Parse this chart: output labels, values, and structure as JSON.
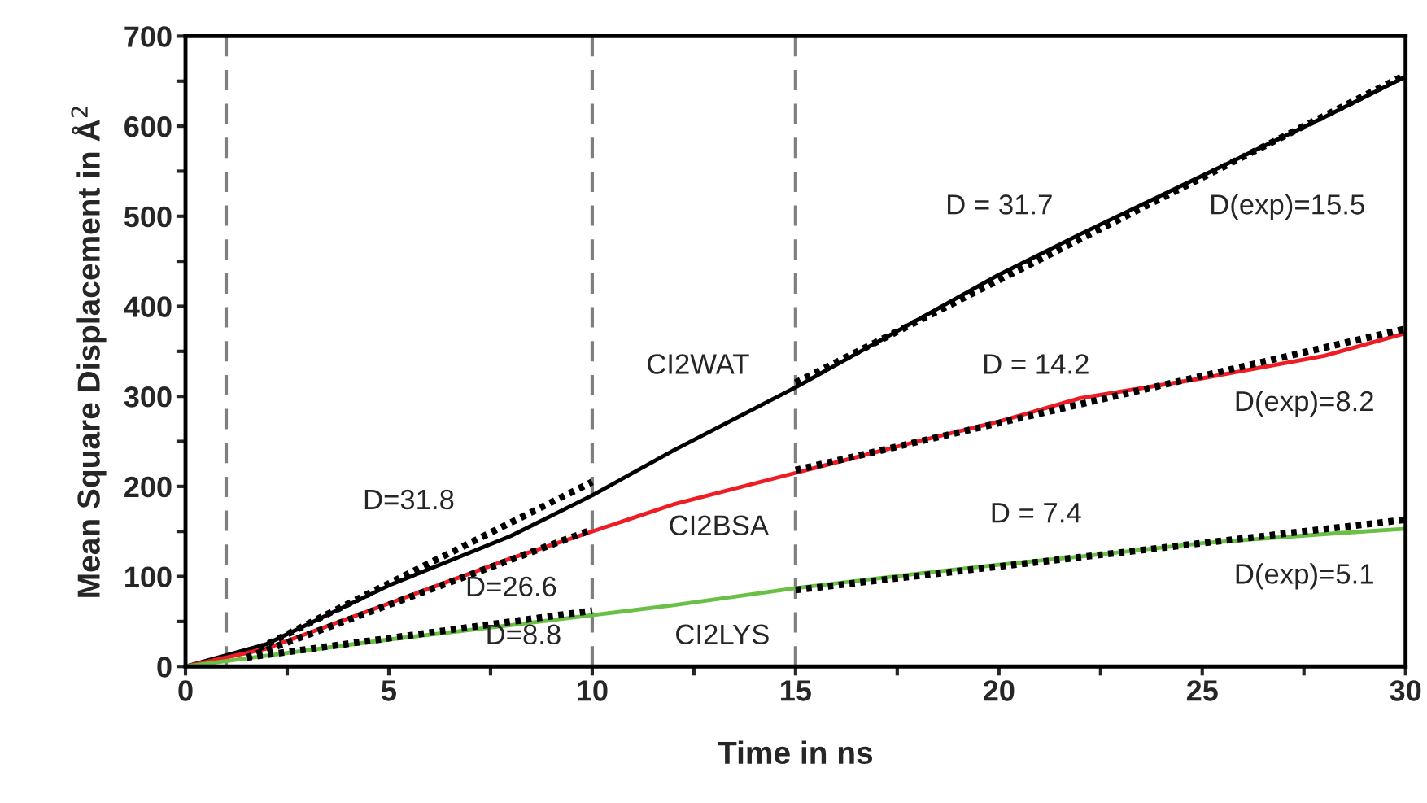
{
  "chart_data": {
    "type": "line",
    "xlabel": "Time in ns",
    "ylabel": "Mean Square Displacement in Å$^{2}$",
    "xlim": [
      0,
      30
    ],
    "ylim": [
      0,
      700
    ],
    "xticks": [
      0,
      {
        "value": 2.5,
        "label": null
      },
      5,
      {
        "value": 7.5,
        "label": null
      },
      10,
      {
        "value": 12.5,
        "label": null
      },
      15,
      {
        "value": 17.5,
        "label": null
      },
      20,
      {
        "value": 22.5,
        "label": null
      },
      25,
      {
        "value": 27.5,
        "label": null
      },
      30
    ],
    "yticks": [
      0,
      {
        "value": 50,
        "label": null
      },
      100,
      {
        "value": 150,
        "label": null
      },
      200,
      {
        "value": 250,
        "label": null
      },
      300,
      {
        "value": 350,
        "label": null
      },
      400,
      {
        "value": 450,
        "label": null
      },
      500,
      {
        "value": 550,
        "label": null
      },
      600,
      {
        "value": 650,
        "label": null
      },
      700
    ],
    "grid": false,
    "legend": false,
    "series": [
      {
        "name": "CI2WAT",
        "color": "#000000",
        "line_style": "solid",
        "x": [
          0,
          2,
          5,
          8,
          10,
          12,
          15,
          18,
          20,
          22,
          25,
          28,
          30
        ],
        "values": [
          0,
          25,
          90,
          145,
          190,
          240,
          310,
          385,
          435,
          480,
          545,
          610,
          655
        ]
      },
      {
        "name": "CI2BSA",
        "color": "#ee1c24",
        "line_style": "solid",
        "x": [
          0,
          2,
          5,
          8,
          10,
          12,
          15,
          18,
          20,
          22,
          25,
          28,
          30
        ],
        "values": [
          0,
          20,
          70,
          120,
          150,
          180,
          215,
          250,
          272,
          298,
          320,
          345,
          370
        ]
      },
      {
        "name": "CI2LYS",
        "color": "#6abf45",
        "line_style": "solid",
        "x": [
          0,
          2,
          5,
          8,
          10,
          12,
          15,
          18,
          20,
          22,
          25,
          28,
          30
        ],
        "values": [
          0,
          12,
          30,
          46,
          57,
          68,
          87,
          103,
          113,
          122,
          137,
          147,
          153
        ]
      },
      {
        "color": "#000000",
        "line_style": "dotted",
        "x": [
          1.8,
          10
        ],
        "values": [
          20,
          205
        ]
      },
      {
        "color": "#000000",
        "line_style": "dotted",
        "x": [
          15,
          30
        ],
        "values": [
          315,
          657
        ]
      },
      {
        "color": "#000000",
        "line_style": "dotted",
        "x": [
          1.5,
          10
        ],
        "values": [
          10,
          152
        ]
      },
      {
        "color": "#000000",
        "line_style": "dotted",
        "x": [
          15,
          30
        ],
        "values": [
          218,
          375
        ]
      },
      {
        "color": "#000000",
        "line_style": "dotted",
        "x": [
          1.5,
          10
        ],
        "values": [
          10,
          62
        ]
      },
      {
        "color": "#000000",
        "line_style": "dotted",
        "x": [
          15,
          30
        ],
        "values": [
          85,
          163
        ]
      }
    ],
    "ref_lines": [
      {
        "axis": "x",
        "value": 1,
        "color": "#7f7f7f",
        "line_style": "dashed"
      },
      {
        "axis": "x",
        "value": 10,
        "color": "#7f7f7f",
        "line_style": "dashed"
      },
      {
        "axis": "x",
        "value": 15,
        "color": "#7f7f7f",
        "line_style": "dashed"
      }
    ],
    "annotations": [
      "D=31.8",
      "D=26.6",
      "D=8.8",
      "D = 31.7",
      "D(exp)=15.5",
      "D = 14.2",
      "D(exp)=8.2",
      "D = 7.4",
      "D(exp)=5.1"
    ]
  }
}
